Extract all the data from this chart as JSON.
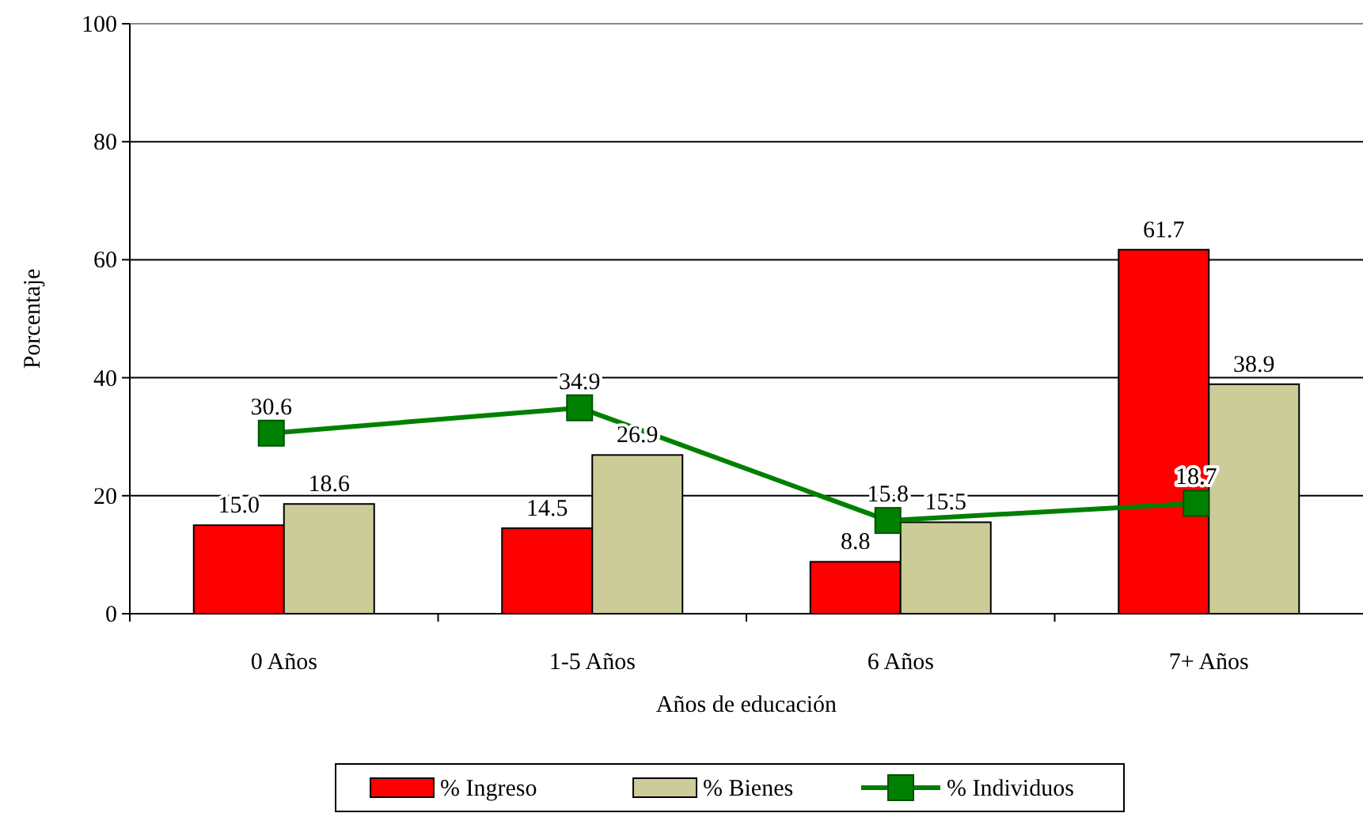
{
  "chart_data": {
    "type": "bar",
    "xlabel": "Años de educación",
    "ylabel": "Porcentaje",
    "categories": [
      "0 Años",
      "1-5 Años",
      "6 Años",
      "7+ Años"
    ],
    "series": [
      {
        "name": "% Ingreso",
        "color": "#ff0000",
        "values": [
          15.0,
          14.5,
          8.8,
          61.7
        ],
        "value_labels": [
          "15.0",
          "14.5",
          "8.8",
          "61.7"
        ]
      },
      {
        "name": "% Bienes",
        "color": "#cccc99",
        "values": [
          18.6,
          26.9,
          15.5,
          38.9
        ],
        "value_labels": [
          "18.6",
          "26.9",
          "15.5",
          "38.9"
        ]
      },
      {
        "name": "% Individuos",
        "color": "#008000",
        "type": "line",
        "values": [
          30.6,
          34.9,
          15.8,
          18.7
        ],
        "value_labels": [
          "30.6",
          "34.9",
          "15.8",
          "18.7"
        ]
      }
    ],
    "ylim": [
      0,
      100
    ],
    "yticks": [
      0,
      20,
      40,
      60,
      80,
      100
    ],
    "grid": "y",
    "legend": "bottom",
    "marker": "square"
  }
}
